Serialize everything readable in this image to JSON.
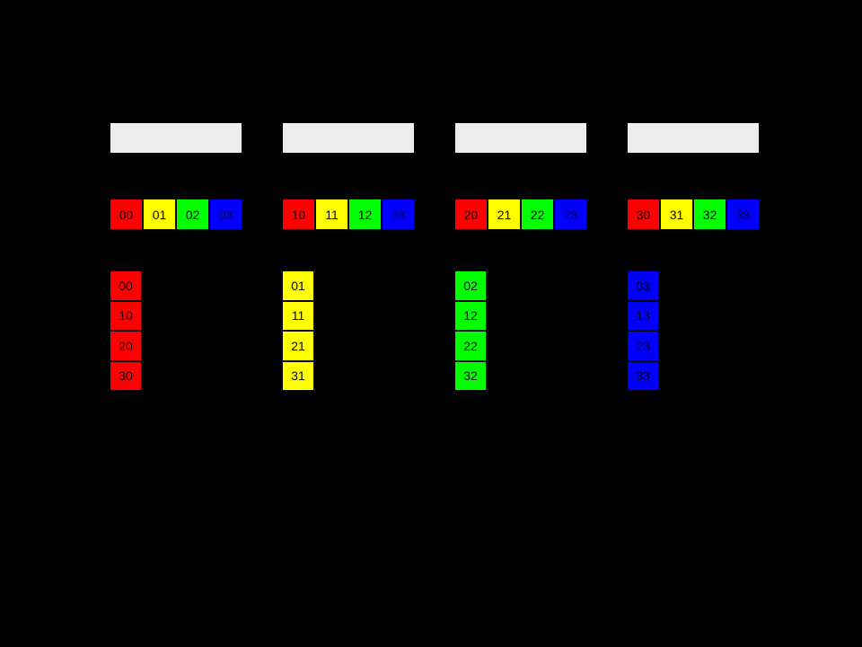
{
  "background": "#000000",
  "palette": {
    "red": "#ff0000",
    "yellow": "#ffff00",
    "green": "#00ff00",
    "blue": "#0000ff",
    "buffer_gray": "#eeeeee",
    "cell_text": "#000000"
  },
  "groups": [
    {
      "id": "group-0",
      "row_cells": [
        {
          "label": "00",
          "color": "#ff0000"
        },
        {
          "label": "01",
          "color": "#ffff00"
        },
        {
          "label": "02",
          "color": "#00ff00"
        },
        {
          "label": "03",
          "color": "#0000ff"
        }
      ],
      "column_cells": [
        {
          "label": "00",
          "color": "#ff0000"
        },
        {
          "label": "10",
          "color": "#ff0000"
        },
        {
          "label": "20",
          "color": "#ff0000"
        },
        {
          "label": "30",
          "color": "#ff0000"
        }
      ]
    },
    {
      "id": "group-1",
      "row_cells": [
        {
          "label": "10",
          "color": "#ff0000"
        },
        {
          "label": "11",
          "color": "#ffff00"
        },
        {
          "label": "12",
          "color": "#00ff00"
        },
        {
          "label": "13",
          "color": "#0000ff"
        }
      ],
      "column_cells": [
        {
          "label": "01",
          "color": "#ffff00"
        },
        {
          "label": "11",
          "color": "#ffff00"
        },
        {
          "label": "21",
          "color": "#ffff00"
        },
        {
          "label": "31",
          "color": "#ffff00"
        }
      ]
    },
    {
      "id": "group-2",
      "row_cells": [
        {
          "label": "20",
          "color": "#ff0000"
        },
        {
          "label": "21",
          "color": "#ffff00"
        },
        {
          "label": "22",
          "color": "#00ff00"
        },
        {
          "label": "23",
          "color": "#0000ff"
        }
      ],
      "column_cells": [
        {
          "label": "02",
          "color": "#00ff00"
        },
        {
          "label": "12",
          "color": "#00ff00"
        },
        {
          "label": "22",
          "color": "#00ff00"
        },
        {
          "label": "32",
          "color": "#00ff00"
        }
      ]
    },
    {
      "id": "group-3",
      "row_cells": [
        {
          "label": "30",
          "color": "#ff0000"
        },
        {
          "label": "31",
          "color": "#ffff00"
        },
        {
          "label": "32",
          "color": "#00ff00"
        },
        {
          "label": "33",
          "color": "#0000ff"
        }
      ],
      "column_cells": [
        {
          "label": "03",
          "color": "#0000ff"
        },
        {
          "label": "13",
          "color": "#0000ff"
        },
        {
          "label": "23",
          "color": "#0000ff"
        },
        {
          "label": "33",
          "color": "#0000ff"
        }
      ]
    }
  ]
}
